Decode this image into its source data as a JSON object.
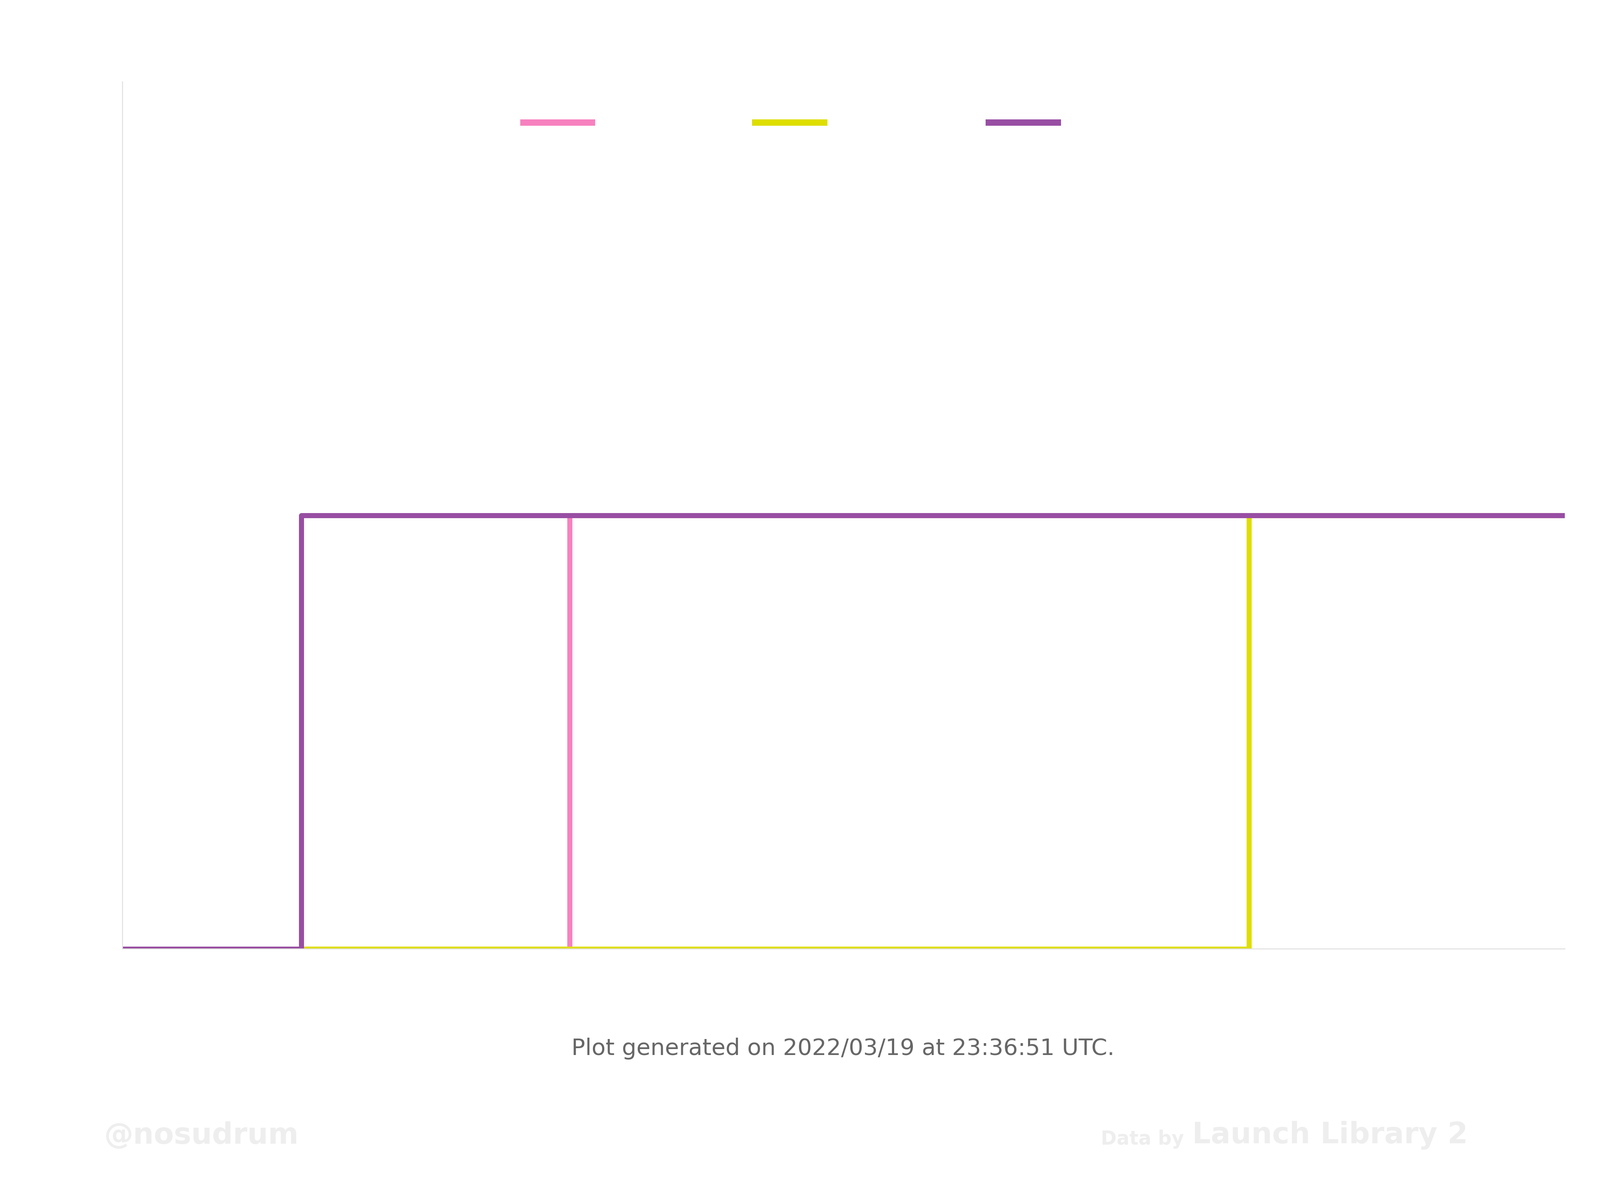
{
  "chart_data": {
    "type": "line",
    "series": [
      {
        "color": "#f781bf",
        "x": [
          12.4,
          31.0,
          100
        ],
        "values": [
          0,
          1,
          1
        ]
      },
      {
        "color": "#dede00",
        "x": [
          12.4,
          78.1,
          100
        ],
        "values": [
          0,
          1,
          1
        ]
      },
      {
        "color": "#984ea3",
        "x": [
          0,
          12.4,
          100
        ],
        "values": [
          0,
          1,
          1
        ]
      }
    ],
    "line_style": "steps-post",
    "xlim": [
      0,
      100
    ],
    "ylim": [
      0,
      2
    ],
    "xticks": [],
    "yticks": [],
    "tick_labels": false,
    "grid": false,
    "annotations": [
      "Plot generated on 2022/03/19 at 23:36:51 UTC.",
      "@nosudrum",
      "Data by",
      "Launch Library 2"
    ]
  }
}
